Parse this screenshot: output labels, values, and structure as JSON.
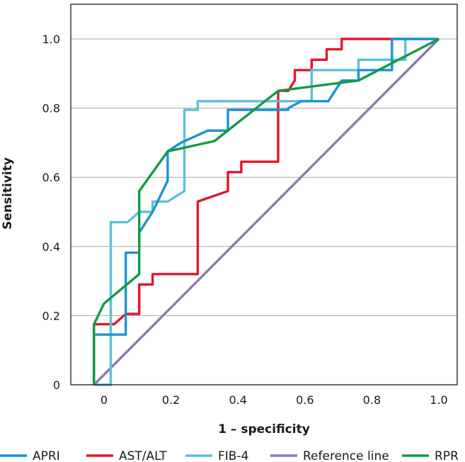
{
  "chart_data": {
    "type": "line",
    "xlabel": "1 – specificity",
    "ylabel": "Sensitivity",
    "xlim": [
      -0.05,
      1.0
    ],
    "ylim": [
      0,
      1.0
    ],
    "x_ticks": [
      {
        "value": 0,
        "label": "0"
      },
      {
        "value": 0.2,
        "label": "0.2"
      },
      {
        "value": 0.4,
        "label": "0.4"
      },
      {
        "value": 0.6,
        "label": "0.6"
      },
      {
        "value": 0.8,
        "label": "0.8"
      },
      {
        "value": 1.0,
        "label": "1.0"
      }
    ],
    "y_ticks": [
      {
        "value": 0,
        "label": "0"
      },
      {
        "value": 0.2,
        "label": "0.2"
      },
      {
        "value": 0.4,
        "label": "0.4"
      },
      {
        "value": 0.6,
        "label": "0.6"
      },
      {
        "value": 0.8,
        "label": "0.8"
      },
      {
        "value": 1.0,
        "label": "1.0"
      }
    ],
    "grid": "horizontal",
    "legend_position": "bottom",
    "series": [
      {
        "name": "APRI",
        "color": "#1b93d2",
        "points": [
          [
            -0.03,
            0.0
          ],
          [
            -0.03,
            0.145
          ],
          [
            0.065,
            0.145
          ],
          [
            0.065,
            0.382
          ],
          [
            0.105,
            0.382
          ],
          [
            0.105,
            0.44
          ],
          [
            0.145,
            0.5
          ],
          [
            0.19,
            0.59
          ],
          [
            0.19,
            0.675
          ],
          [
            0.23,
            0.7
          ],
          [
            0.31,
            0.735
          ],
          [
            0.31,
            0.735
          ],
          [
            0.37,
            0.735
          ],
          [
            0.37,
            0.795
          ],
          [
            0.55,
            0.795
          ],
          [
            0.55,
            0.8
          ],
          [
            0.59,
            0.82
          ],
          [
            0.67,
            0.82
          ],
          [
            0.71,
            0.88
          ],
          [
            0.76,
            0.88
          ],
          [
            0.76,
            0.91
          ],
          [
            0.86,
            0.91
          ],
          [
            0.86,
            1.0
          ],
          [
            1.0,
            1.0
          ]
        ]
      },
      {
        "name": "AST/ALT",
        "color": "#e0172a",
        "points": [
          [
            -0.03,
            0.0
          ],
          [
            -0.03,
            0.175
          ],
          [
            0.03,
            0.175
          ],
          [
            0.065,
            0.205
          ],
          [
            0.105,
            0.205
          ],
          [
            0.105,
            0.29
          ],
          [
            0.145,
            0.29
          ],
          [
            0.145,
            0.32
          ],
          [
            0.28,
            0.32
          ],
          [
            0.28,
            0.53
          ],
          [
            0.37,
            0.56
          ],
          [
            0.37,
            0.615
          ],
          [
            0.41,
            0.615
          ],
          [
            0.41,
            0.645
          ],
          [
            0.52,
            0.645
          ],
          [
            0.52,
            0.85
          ],
          [
            0.55,
            0.85
          ],
          [
            0.57,
            0.88
          ],
          [
            0.57,
            0.91
          ],
          [
            0.62,
            0.91
          ],
          [
            0.62,
            0.94
          ],
          [
            0.665,
            0.94
          ],
          [
            0.665,
            0.97
          ],
          [
            0.71,
            0.97
          ],
          [
            0.71,
            1.0
          ],
          [
            0.9,
            1.0
          ]
        ]
      },
      {
        "name": "FIB-4",
        "color": "#5dc1d6",
        "points": [
          [
            -0.03,
            0.0
          ],
          [
            0.02,
            0.0
          ],
          [
            0.02,
            0.47
          ],
          [
            0.07,
            0.47
          ],
          [
            0.105,
            0.5
          ],
          [
            0.145,
            0.5
          ],
          [
            0.145,
            0.53
          ],
          [
            0.19,
            0.53
          ],
          [
            0.24,
            0.56
          ],
          [
            0.24,
            0.795
          ],
          [
            0.28,
            0.795
          ],
          [
            0.28,
            0.82
          ],
          [
            0.62,
            0.82
          ],
          [
            0.62,
            0.91
          ],
          [
            0.76,
            0.91
          ],
          [
            0.76,
            0.94
          ],
          [
            0.9,
            0.94
          ],
          [
            0.9,
            1.0
          ],
          [
            1.0,
            1.0
          ]
        ]
      },
      {
        "name": "Reference line",
        "color": "#8a79b8",
        "points": [
          [
            -0.03,
            0.0
          ],
          [
            1.0,
            1.0
          ]
        ]
      },
      {
        "name": "RPR",
        "color": "#119b47",
        "points": [
          [
            -0.03,
            0.0
          ],
          [
            -0.03,
            0.175
          ],
          [
            0.0,
            0.235
          ],
          [
            0.105,
            0.32
          ],
          [
            0.105,
            0.56
          ],
          [
            0.19,
            0.675
          ],
          [
            0.33,
            0.705
          ],
          [
            0.52,
            0.85
          ],
          [
            0.76,
            0.88
          ],
          [
            0.9,
            0.95
          ],
          [
            1.0,
            1.0
          ]
        ]
      }
    ]
  }
}
